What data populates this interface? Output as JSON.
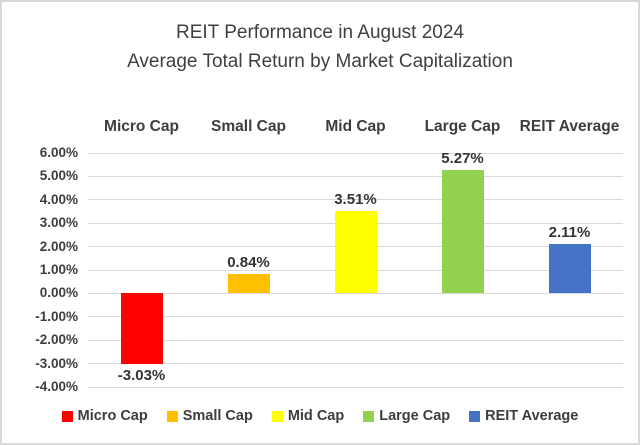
{
  "chart_data": {
    "type": "bar",
    "title": "REIT Performance in August 2024",
    "subtitle": "Average Total Return by Market Capitalization",
    "categories": [
      "Micro Cap",
      "Small Cap",
      "Mid Cap",
      "Large Cap",
      "REIT Average"
    ],
    "values": [
      -3.03,
      0.84,
      3.51,
      5.27,
      2.11
    ],
    "value_labels": [
      "-3.03%",
      "0.84%",
      "3.51%",
      "5.27%",
      "2.11%"
    ],
    "bar_colors": [
      "#FF0000",
      "#FFC000",
      "#FFFF00",
      "#92D050",
      "#4472C4"
    ],
    "ylim": [
      -4,
      6
    ],
    "ytick_step": 1,
    "ytick_labels_top_to_bottom": [
      "6.00%",
      "5.00%",
      "4.00%",
      "3.00%",
      "2.00%",
      "1.00%",
      "0.00%",
      "-1.00%",
      "-2.00%",
      "-3.00%",
      "-4.00%"
    ],
    "grid": true,
    "legend_position": "bottom",
    "legend_items": [
      {
        "label": "Micro Cap",
        "color": "#FF0000"
      },
      {
        "label": "Small Cap",
        "color": "#FFC000"
      },
      {
        "label": "Mid Cap",
        "color": "#FFFF00"
      },
      {
        "label": "Large Cap",
        "color": "#92D050"
      },
      {
        "label": "REIT Average",
        "color": "#4472C4"
      }
    ],
    "colors": {
      "gridline": "#D9D9D9",
      "frame_border": "#D9D9D9",
      "text": "#404040"
    }
  }
}
